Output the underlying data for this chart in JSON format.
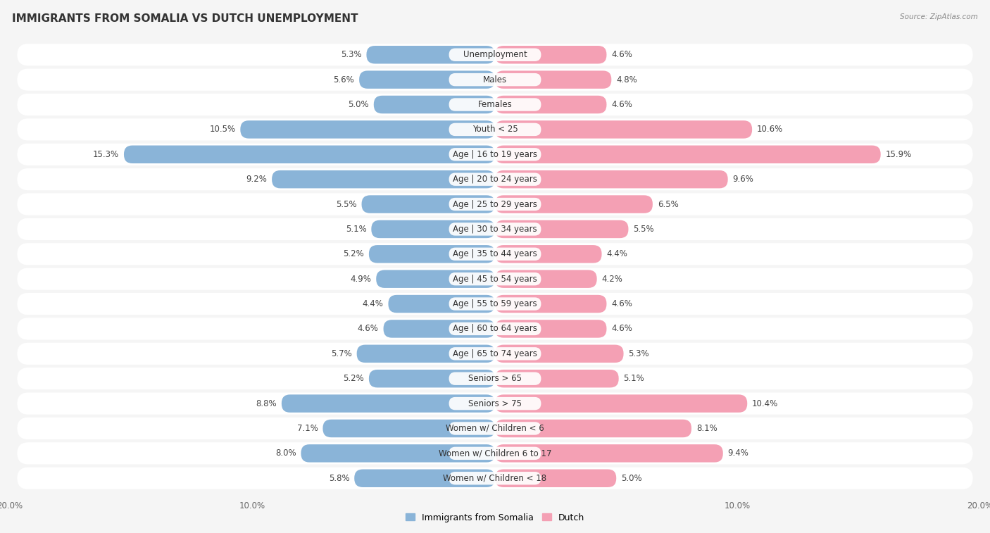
{
  "title": "IMMIGRANTS FROM SOMALIA VS DUTCH UNEMPLOYMENT",
  "source": "Source: ZipAtlas.com",
  "categories": [
    "Unemployment",
    "Males",
    "Females",
    "Youth < 25",
    "Age | 16 to 19 years",
    "Age | 20 to 24 years",
    "Age | 25 to 29 years",
    "Age | 30 to 34 years",
    "Age | 35 to 44 years",
    "Age | 45 to 54 years",
    "Age | 55 to 59 years",
    "Age | 60 to 64 years",
    "Age | 65 to 74 years",
    "Seniors > 65",
    "Seniors > 75",
    "Women w/ Children < 6",
    "Women w/ Children 6 to 17",
    "Women w/ Children < 18"
  ],
  "somalia_values": [
    5.3,
    5.6,
    5.0,
    10.5,
    15.3,
    9.2,
    5.5,
    5.1,
    5.2,
    4.9,
    4.4,
    4.6,
    5.7,
    5.2,
    8.8,
    7.1,
    8.0,
    5.8
  ],
  "dutch_values": [
    4.6,
    4.8,
    4.6,
    10.6,
    15.9,
    9.6,
    6.5,
    5.5,
    4.4,
    4.2,
    4.6,
    4.6,
    5.3,
    5.1,
    10.4,
    8.1,
    9.4,
    5.0
  ],
  "somalia_color": "#8ab4d8",
  "dutch_color": "#f4a0b4",
  "row_bg_color": "#e8e8e8",
  "bar_bg_color": "#d8d8dc",
  "white_color": "#ffffff",
  "xlim": 20.0,
  "background_color": "#f5f5f5",
  "title_fontsize": 11,
  "label_fontsize": 8.5,
  "tick_fontsize": 8.5,
  "annotation_fontsize": 8.5,
  "legend_fontsize": 9
}
